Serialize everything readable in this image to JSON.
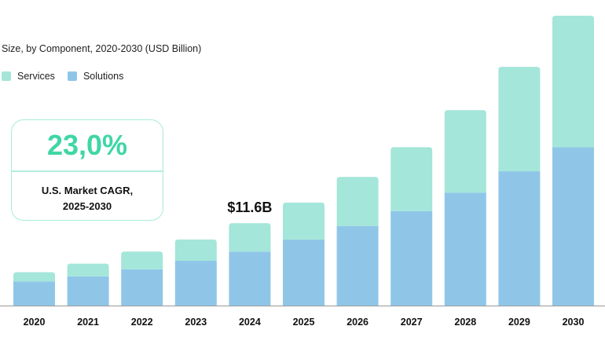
{
  "chart_data": {
    "type": "bar",
    "stacked": true,
    "title": "Size, by Component, 2020-2030 (USD Billion)",
    "xlabel": "",
    "ylabel": "",
    "categories": [
      "2020",
      "2021",
      "2022",
      "2023",
      "2024",
      "2025",
      "2026",
      "2027",
      "2028",
      "2029",
      "2030"
    ],
    "series": [
      {
        "name": "Solutions",
        "color": "#8fc6e8",
        "values": [
          3.4,
          4.1,
          5.1,
          6.3,
          7.6,
          9.3,
          11.2,
          13.3,
          15.9,
          18.9,
          22.3
        ]
      },
      {
        "name": "Services",
        "color": "#a4e6d9",
        "values": [
          1.3,
          1.8,
          2.5,
          3.0,
          4.0,
          5.2,
          6.9,
          9.0,
          11.6,
          14.7,
          18.5
        ]
      }
    ],
    "legend": [
      "Services",
      "Solutions"
    ],
    "legend_placement": "top-left",
    "annotation": {
      "category": "2024",
      "text": "$11.6B"
    },
    "ylim": [
      0,
      42
    ],
    "grid": false
  },
  "cagr": {
    "value": "23,0%",
    "label_line1": "U.S. Market CAGR,",
    "label_line2": "2025-2030"
  }
}
